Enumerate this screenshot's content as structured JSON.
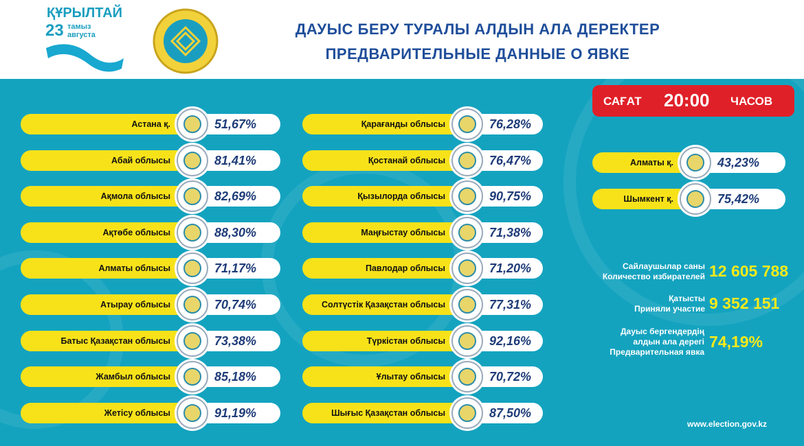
{
  "header": {
    "brand": "ҚҰРЫЛТАЙ",
    "date_day": "23",
    "date_kz": "тамыз",
    "date_ru": "августа",
    "title_kz": "ДАУЫС БЕРУ ТУРАЛЫ АЛДЫН АЛА ДЕРЕКТЕР",
    "title_ru": "ПРЕДВАРИТЕЛЬНЫЕ ДАННЫЕ О ЯВКЕ"
  },
  "time_badge": {
    "prefix": "САҒАТ",
    "time": "20:00",
    "suffix": "ЧАСОВ"
  },
  "regions": {
    "column_1": [
      {
        "name": "Астана қ.",
        "turnout": "51,67%"
      },
      {
        "name": "Абай облысы",
        "turnout": "81,41%"
      },
      {
        "name": "Ақмола облысы",
        "turnout": "82,69%"
      },
      {
        "name": "Ақтөбе облысы",
        "turnout": "88,30%"
      },
      {
        "name": "Алматы облысы",
        "turnout": "71,17%"
      },
      {
        "name": "Атырау облысы",
        "turnout": "70,74%"
      },
      {
        "name": "Батыс Қазақстан облысы",
        "turnout": "73,38%"
      },
      {
        "name": "Жамбыл облысы",
        "turnout": "85,18%"
      },
      {
        "name": "Жетісу облысы",
        "turnout": "91,19%"
      }
    ],
    "column_2": [
      {
        "name": "Қарағанды облысы",
        "turnout": "76,28%"
      },
      {
        "name": "Қостанай облысы",
        "turnout": "76,47%"
      },
      {
        "name": "Қызылорда облысы",
        "turnout": "90,75%"
      },
      {
        "name": "Маңғыстау облысы",
        "turnout": "71,38%"
      },
      {
        "name": "Павлодар облысы",
        "turnout": "71,20%"
      },
      {
        "name": "Солтүстік Қазақстан облысы",
        "turnout": "77,31%"
      },
      {
        "name": "Түркістан облысы",
        "turnout": "92,16%"
      },
      {
        "name": "Ұлытау облысы",
        "turnout": "70,72%"
      },
      {
        "name": "Шығыс Қазақстан облысы",
        "turnout": "87,50%"
      }
    ],
    "cities": [
      {
        "name": "Алматы қ.",
        "turnout": "43,23%"
      },
      {
        "name": "Шымкент қ.",
        "turnout": "75,42%"
      }
    ]
  },
  "stats": [
    {
      "label_lines": [
        "Сайлаушылар саны",
        "Количество избирателей"
      ],
      "value": "12 605 788"
    },
    {
      "label_lines": [
        "Қатысты",
        "Приняли участие"
      ],
      "value": "9 352 151"
    },
    {
      "label_lines": [
        "Дауыс бергендердің",
        "алдын ала дерегі",
        "Предварительная явка"
      ],
      "value": "74,19%"
    }
  ],
  "footer": {
    "website": "www.election.gov.kz"
  }
}
